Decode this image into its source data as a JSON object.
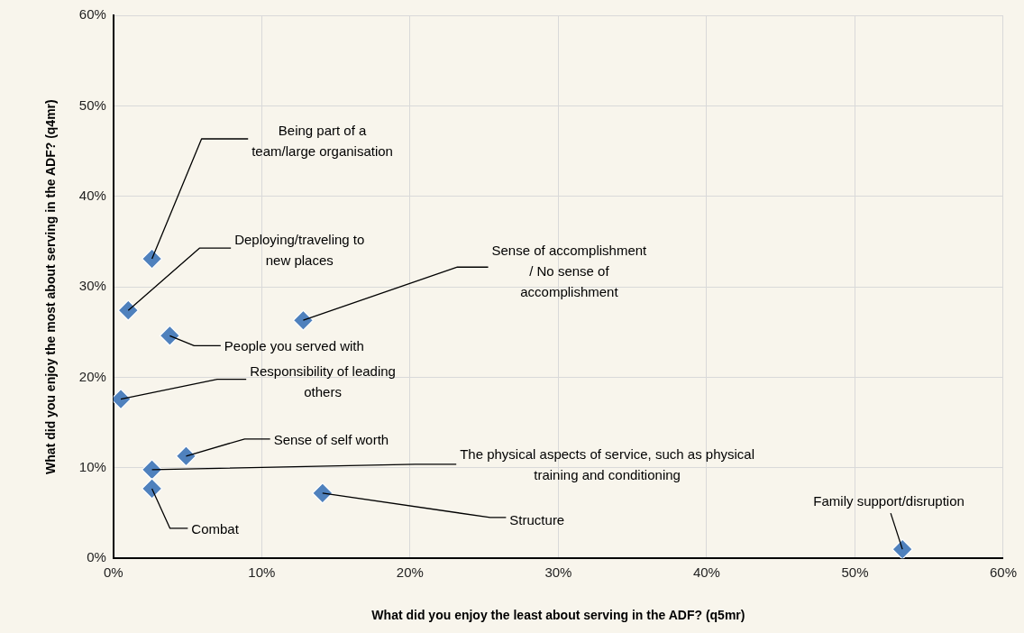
{
  "chart_data": {
    "type": "scatter",
    "xlabel": "What did you enjoy the least about serving in the ADF? (q5mr)",
    "ylabel": "What did you enjoy the most about serving in the ADF? (q4mr)",
    "xlim": [
      0,
      60
    ],
    "ylim": [
      0,
      60
    ],
    "xticks": [
      {
        "value": 0,
        "label": "0%"
      },
      {
        "value": 10,
        "label": "10%"
      },
      {
        "value": 20,
        "label": "20%"
      },
      {
        "value": 30,
        "label": "30%"
      },
      {
        "value": 40,
        "label": "40%"
      },
      {
        "value": 50,
        "label": "50%"
      },
      {
        "value": 60,
        "label": "60%"
      }
    ],
    "yticks": [
      {
        "value": 0,
        "label": "0%"
      },
      {
        "value": 10,
        "label": "10%"
      },
      {
        "value": 20,
        "label": "20%"
      },
      {
        "value": 30,
        "label": "30%"
      },
      {
        "value": 40,
        "label": "40%"
      },
      {
        "value": 50,
        "label": "50%"
      },
      {
        "value": 60,
        "label": "60%"
      }
    ],
    "grid": true,
    "legend": false,
    "marker": "diamond",
    "series": [
      {
        "color": "#4f81bd",
        "x": [
          2.6,
          1.0,
          3.8,
          12.8,
          0.5,
          4.9,
          2.6,
          2.6,
          14.1,
          53.2
        ],
        "values": [
          33.1,
          27.4,
          24.6,
          26.3,
          17.6,
          11.3,
          9.8,
          7.7,
          7.2,
          1.0
        ]
      }
    ],
    "annotations": [
      {
        "text": "Being part of a team/large organisation",
        "x": 2.6,
        "y": 33.1
      },
      {
        "text": "Deploying/traveling to new places",
        "x": 1.0,
        "y": 27.4
      },
      {
        "text": "People you served with",
        "x": 3.8,
        "y": 24.6
      },
      {
        "text": "Sense of accomplishment / No sense of accomplishment",
        "x": 12.8,
        "y": 26.3
      },
      {
        "text": "Responsibility of leading others",
        "x": 0.5,
        "y": 17.6
      },
      {
        "text": "Sense of self worth",
        "x": 4.9,
        "y": 11.3
      },
      {
        "text": "The physical aspects of service, such as physical training and conditioning",
        "x": 2.6,
        "y": 9.8
      },
      {
        "text": "Combat",
        "x": 2.6,
        "y": 7.7
      },
      {
        "text": "Structure",
        "x": 14.1,
        "y": 7.2
      },
      {
        "text": "Family support/disruption",
        "x": 53.2,
        "y": 1.0
      }
    ]
  }
}
